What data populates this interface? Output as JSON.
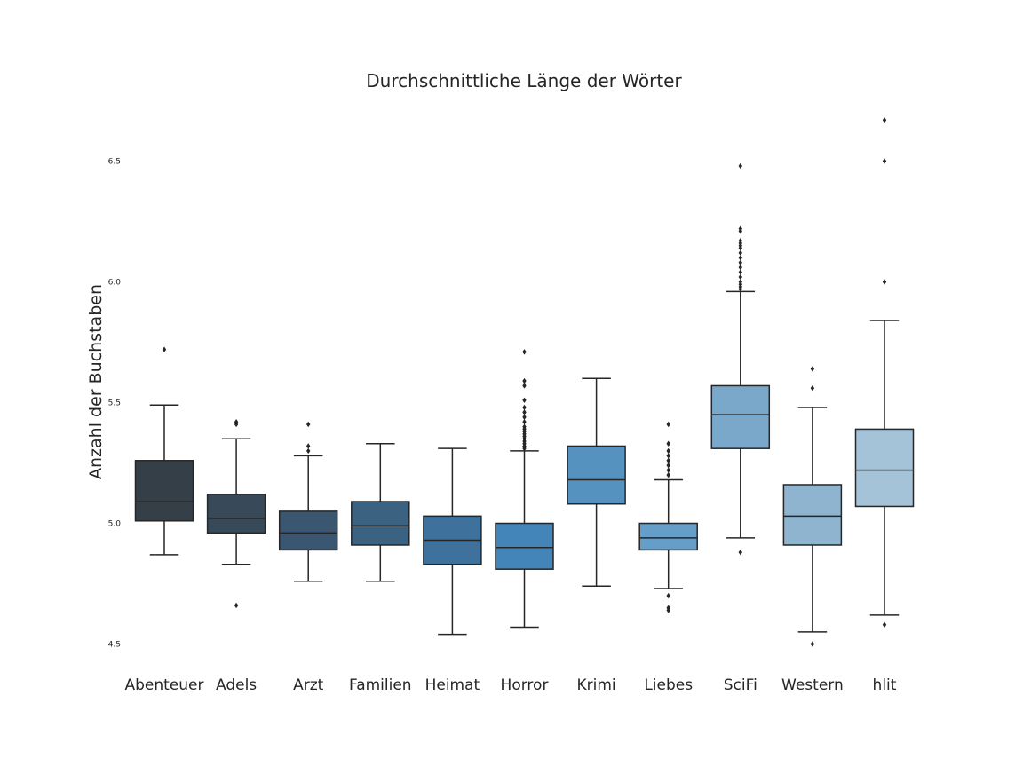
{
  "chart_data": {
    "type": "box",
    "title": "Durchschnittliche Länge der Wörter",
    "xlabel": "",
    "ylabel": "Anzahl der Buchstaben",
    "ylim": [
      4.5,
      6.65
    ],
    "yticks": [
      "4.5",
      "5.0",
      "5.5",
      "6.0",
      "6.5"
    ],
    "grid": false,
    "categories": [
      "Abenteuer",
      "Adels",
      "Arzt",
      "Familien",
      "Heimat",
      "Horror",
      "Krimi",
      "Liebes",
      "SciFi",
      "Western",
      "hlit"
    ],
    "colors": [
      "#353f48",
      "#384a5a",
      "#3a5670",
      "#3c6281",
      "#3e719b",
      "#4384b9",
      "#5592bf",
      "#659ec9",
      "#7aa8ca",
      "#8fb4d0",
      "#a4c2d8"
    ],
    "boxes": [
      {
        "whislo": 4.87,
        "q1": 5.01,
        "med": 5.09,
        "q3": 5.26,
        "whishi": 5.49,
        "fliers": [
          5.72
        ]
      },
      {
        "whislo": 4.83,
        "q1": 4.96,
        "med": 5.02,
        "q3": 5.12,
        "whishi": 5.35,
        "fliers": [
          5.41,
          5.42,
          4.66
        ]
      },
      {
        "whislo": 4.76,
        "q1": 4.89,
        "med": 4.96,
        "q3": 5.05,
        "whishi": 5.28,
        "fliers": [
          5.3,
          5.32,
          5.41
        ]
      },
      {
        "whislo": 4.76,
        "q1": 4.91,
        "med": 4.99,
        "q3": 5.09,
        "whishi": 5.33,
        "fliers": []
      },
      {
        "whislo": 4.54,
        "q1": 4.83,
        "med": 4.93,
        "q3": 5.03,
        "whishi": 5.31,
        "fliers": []
      },
      {
        "whislo": 4.57,
        "q1": 4.81,
        "med": 4.9,
        "q3": 5.0,
        "whishi": 5.3,
        "fliers": [
          5.31,
          5.32,
          5.33,
          5.34,
          5.35,
          5.36,
          5.37,
          5.38,
          5.39,
          5.4,
          5.42,
          5.44,
          5.46,
          5.48,
          5.51,
          5.57,
          5.59,
          5.71
        ]
      },
      {
        "whislo": 4.74,
        "q1": 5.08,
        "med": 5.18,
        "q3": 5.32,
        "whishi": 5.6,
        "fliers": []
      },
      {
        "whislo": 4.73,
        "q1": 4.89,
        "med": 4.94,
        "q3": 5.0,
        "whishi": 5.18,
        "fliers": [
          5.2,
          5.22,
          5.24,
          5.26,
          5.28,
          5.3,
          5.33,
          5.41,
          4.7,
          4.65,
          4.64
        ]
      },
      {
        "whislo": 4.94,
        "q1": 5.31,
        "med": 5.45,
        "q3": 5.57,
        "whishi": 5.96,
        "fliers": [
          5.97,
          5.98,
          5.99,
          6.0,
          6.02,
          6.04,
          6.06,
          6.08,
          6.1,
          6.12,
          6.14,
          6.15,
          6.16,
          6.17,
          6.21,
          6.22,
          6.48,
          4.88
        ]
      },
      {
        "whislo": 4.55,
        "q1": 4.91,
        "med": 5.03,
        "q3": 5.16,
        "whishi": 5.48,
        "fliers": [
          5.56,
          5.64,
          4.5
        ]
      },
      {
        "whislo": 4.62,
        "q1": 5.07,
        "med": 5.22,
        "q3": 5.39,
        "whishi": 5.84,
        "fliers": [
          6.0,
          6.5,
          6.67,
          4.58
        ]
      }
    ]
  }
}
